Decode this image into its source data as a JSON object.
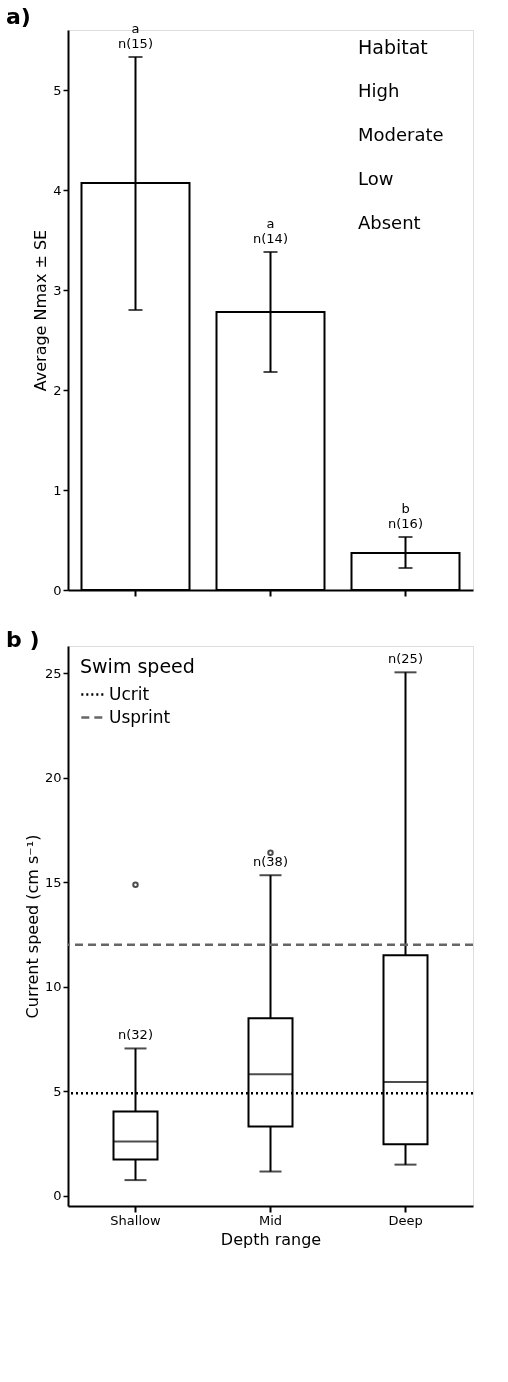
{
  "chart_data": [
    {
      "type": "bar",
      "title": "a)",
      "ylabel": "Average Nmax ± SE",
      "categories": [
        "Shallow",
        "Mid",
        "Deep"
      ],
      "tick_labels": "y",
      "values": [
        4.07,
        2.78,
        0.37
      ],
      "color": "#ffffff",
      "errors": [
        [
          2.8,
          5.33
        ],
        [
          2.18,
          3.38
        ],
        [
          0.22,
          0.53
        ]
      ],
      "ylim": [
        0,
        5.6
      ],
      "yticks": [
        0,
        1,
        2,
        3,
        4,
        5
      ],
      "grid": false,
      "annotations": [
        {
          "text": "a\nn(15)",
          "x": "Shallow",
          "y": 5.33
        },
        {
          "text": "a\nn(14)",
          "x": "Mid",
          "y": 3.38
        },
        {
          "text": "b\nn(16)",
          "x": "Deep",
          "y": 0.53
        },
        "Habitat",
        "High",
        "Moderate",
        "Low",
        "Absent"
      ]
    },
    {
      "type": "box",
      "title": "b )",
      "xlabel": "Depth range",
      "ylabel": "Current speed (cm s⁻¹)",
      "categories": [
        "Shallow",
        "Mid",
        "Deep"
      ],
      "boxes": [
        {
          "low": 0.74,
          "q1": 1.72,
          "median": 2.59,
          "q3": 4.02,
          "high": 7.04,
          "outliers": [
            14.87
          ]
        },
        {
          "low": 1.15,
          "q1": 3.3,
          "median": 5.81,
          "q3": 8.48,
          "high": 15.33,
          "outliers": [
            16.41
          ]
        },
        {
          "low": 1.48,
          "q1": 2.46,
          "median": 5.44,
          "q3": 11.5,
          "high": 25.04
        }
      ],
      "ylim": [
        -0.5,
        26.3
      ],
      "yticks": [
        0,
        5,
        10,
        15,
        20,
        25
      ],
      "grid": false,
      "legend": "top left",
      "legend_title": "Swim speed",
      "ref_lines": [
        {
          "axis": "y",
          "value": 4.89,
          "label": "Ucrit",
          "color": "#000000",
          "line_style": "dotted"
        },
        {
          "axis": "y",
          "value": 12.0,
          "label": "Usprint",
          "color": "#666666",
          "line_style": "dashed"
        }
      ],
      "annotations": [
        {
          "text": "n(32)",
          "x": "Shallow",
          "y": 7.04
        },
        {
          "text": "n(38)",
          "x": "Mid",
          "y": 15.33
        },
        {
          "text": "n(25)",
          "x": "Deep",
          "y": 25.04
        }
      ]
    }
  ]
}
